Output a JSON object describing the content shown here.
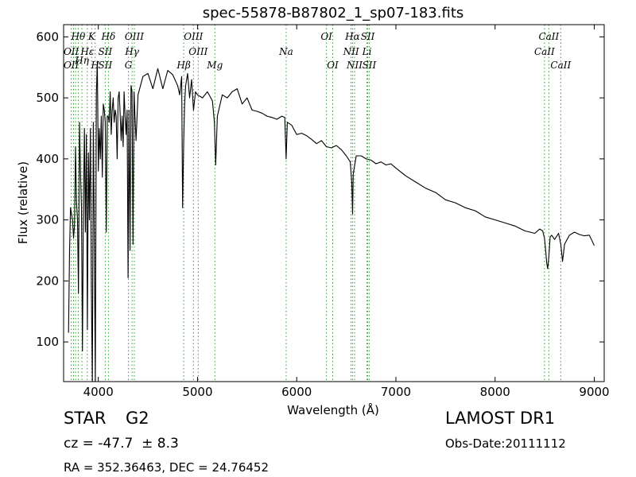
{
  "chart_data": {
    "type": "line",
    "title": "spec-55878-B87802_1_sp07-183.fits",
    "xlabel": "Wavelength (Å)",
    "ylabel": "Flux (relative)",
    "xlim": [
      3650,
      9100
    ],
    "ylim": [
      35,
      620
    ],
    "x_ticks": [
      4000,
      5000,
      6000,
      7000,
      8000,
      9000
    ],
    "y_ticks": [
      100,
      200,
      300,
      400,
      500,
      600
    ],
    "grid": false,
    "line_color": "#000000",
    "line_marker_color": "#2ca02c",
    "series": [
      {
        "x": [
          3700,
          3710,
          3720,
          3730,
          3740,
          3750,
          3760,
          3770,
          3780,
          3790,
          3800,
          3810,
          3820,
          3830,
          3840,
          3850,
          3860,
          3870,
          3880,
          3890,
          3900,
          3910,
          3920,
          3930,
          3940,
          3950,
          3960,
          3970,
          3980,
          3990,
          4000,
          4010,
          4020,
          4030,
          4040,
          4050,
          4060,
          4070,
          4080,
          4090,
          4100,
          4110,
          4120,
          4130,
          4140,
          4150,
          4160,
          4170,
          4180,
          4190,
          4200,
          4210,
          4220,
          4230,
          4240,
          4250,
          4260,
          4270,
          4280,
          4290,
          4300,
          4310,
          4320,
          4330,
          4340,
          4350,
          4360,
          4370,
          4380,
          4400,
          4450,
          4500,
          4550,
          4600,
          4650,
          4700,
          4750,
          4800,
          4820,
          4840,
          4850,
          4861,
          4870,
          4880,
          4900,
          4920,
          4940,
          4960,
          4980,
          5000,
          5050,
          5100,
          5150,
          5170,
          5183,
          5200,
          5250,
          5300,
          5350,
          5400,
          5450,
          5500,
          5550,
          5600,
          5650,
          5700,
          5750,
          5800,
          5850,
          5880,
          5893,
          5905,
          5950,
          6000,
          6050,
          6100,
          6150,
          6200,
          6250,
          6300,
          6350,
          6400,
          6450,
          6500,
          6540,
          6555,
          6563,
          6570,
          6600,
          6650,
          6700,
          6750,
          6800,
          6850,
          6900,
          6950,
          7000,
          7100,
          7200,
          7300,
          7400,
          7500,
          7600,
          7700,
          7800,
          7900,
          8000,
          8100,
          8200,
          8300,
          8400,
          8450,
          8480,
          8498,
          8510,
          8520,
          8530,
          8542,
          8555,
          8570,
          8600,
          8640,
          8662,
          8680,
          8700,
          8750,
          8800,
          8850,
          8900,
          8950,
          9000
        ],
        "y": [
          115,
          250,
          320,
          310,
          300,
          270,
          290,
          420,
          330,
          300,
          180,
          460,
          380,
          320,
          85,
          330,
          450,
          280,
          440,
          120,
          410,
          300,
          450,
          190,
          35,
          460,
          260,
          35,
          505,
          560,
          380,
          450,
          400,
          470,
          370,
          490,
          480,
          460,
          280,
          470,
          470,
          460,
          510,
          440,
          480,
          500,
          460,
          480,
          470,
          400,
          500,
          510,
          475,
          430,
          470,
          420,
          510,
          470,
          440,
          480,
          205,
          480,
          250,
          520,
          510,
          260,
          510,
          470,
          430,
          505,
          535,
          540,
          515,
          548,
          515,
          545,
          538,
          520,
          505,
          535,
          320,
          430,
          490,
          520,
          540,
          500,
          530,
          480,
          510,
          505,
          500,
          510,
          495,
          460,
          390,
          470,
          505,
          500,
          510,
          515,
          490,
          500,
          480,
          478,
          475,
          470,
          468,
          465,
          470,
          468,
          400,
          460,
          455,
          440,
          442,
          438,
          432,
          425,
          430,
          420,
          418,
          422,
          415,
          405,
          395,
          360,
          310,
          375,
          405,
          405,
          400,
          398,
          392,
          395,
          390,
          392,
          385,
          372,
          362,
          352,
          345,
          333,
          328,
          320,
          315,
          305,
          300,
          295,
          290,
          282,
          278,
          285,
          282,
          270,
          250,
          230,
          220,
          240,
          272,
          275,
          268,
          278,
          260,
          232,
          260,
          275,
          280,
          276,
          274,
          275,
          258
        ]
      }
    ],
    "line_annotations": [
      {
        "text": "Hθ",
        "x": 3797,
        "row": "upper"
      },
      {
        "text": "OII",
        "x": 3727,
        "row": "middle"
      },
      {
        "text": "OII",
        "x": 3727,
        "row": "lower"
      },
      {
        "text": "Hη",
        "x": 3835,
        "row": "lower-mid"
      },
      {
        "text": "K",
        "x": 3933,
        "row": "upper"
      },
      {
        "text": "Hε",
        "x": 3889,
        "row": "middle"
      },
      {
        "text": "SII",
        "x": 4070,
        "row": "middle"
      },
      {
        "text": "SII",
        "x": 4070,
        "row": "lower"
      },
      {
        "text": "H",
        "x": 3968,
        "row": "lower"
      },
      {
        "text": "Hδ",
        "x": 4102,
        "row": "upper"
      },
      {
        "text": "OIII",
        "x": 4363,
        "row": "upper"
      },
      {
        "text": "Hγ",
        "x": 4340,
        "row": "middle"
      },
      {
        "text": "G",
        "x": 4304,
        "row": "lower"
      },
      {
        "text": "OIII",
        "x": 4959,
        "row": "upper"
      },
      {
        "text": "OIII",
        "x": 5007,
        "row": "middle"
      },
      {
        "text": "Hβ",
        "x": 4861,
        "row": "lower"
      },
      {
        "text": "Mg",
        "x": 5175,
        "row": "lower"
      },
      {
        "text": "Na",
        "x": 5894,
        "row": "middle"
      },
      {
        "text": "OI",
        "x": 6300,
        "row": "upper"
      },
      {
        "text": "OI",
        "x": 6363,
        "row": "lower"
      },
      {
        "text": "Hα",
        "x": 6563,
        "row": "upper"
      },
      {
        "text": "SII",
        "x": 6716,
        "row": "upper"
      },
      {
        "text": "NII",
        "x": 6548,
        "row": "middle"
      },
      {
        "text": "NII",
        "x": 6583,
        "row": "lower"
      },
      {
        "text": "Li",
        "x": 6708,
        "row": "middle"
      },
      {
        "text": "SII",
        "x": 6731,
        "row": "lower"
      },
      {
        "text": "CaII",
        "x": 8542,
        "row": "upper"
      },
      {
        "text": "CaII",
        "x": 8498,
        "row": "middle"
      },
      {
        "text": "CaII",
        "x": 8662,
        "row": "lower"
      }
    ],
    "line_markers": [
      3727,
      3750,
      3771,
      3798,
      3835,
      3889,
      3933,
      3968,
      4070,
      4102,
      4304,
      4340,
      4363,
      4861,
      4959,
      5007,
      5175,
      5894,
      6300,
      6363,
      6548,
      6563,
      6583,
      6708,
      6716,
      6731,
      8498,
      8542,
      8662
    ]
  },
  "info": {
    "object_class": "STAR",
    "subclass": "G2",
    "survey": "LAMOST DR1",
    "redshift_text": "cz = -47.7  ± 8.3",
    "obs_date": "Obs-Date:20111112",
    "coords": "RA = 352.36463, DEC = 24.76452"
  }
}
